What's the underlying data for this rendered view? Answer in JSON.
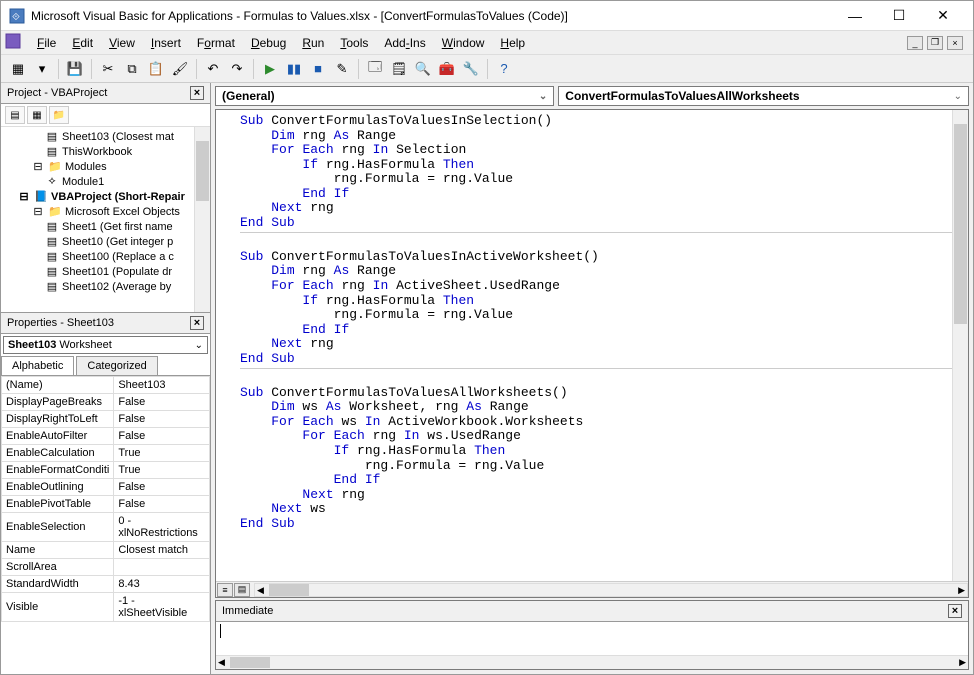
{
  "window": {
    "title": "Microsoft Visual Basic for Applications - Formulas to Values.xlsx - [ConvertFormulasToValues (Code)]"
  },
  "menu": {
    "items": [
      "File",
      "Edit",
      "View",
      "Insert",
      "Format",
      "Debug",
      "Run",
      "Tools",
      "Add-Ins",
      "Window",
      "Help"
    ],
    "underlines": [
      0,
      0,
      0,
      0,
      1,
      0,
      0,
      0,
      3,
      0,
      0
    ]
  },
  "toolbar": {
    "groups": [
      [
        "excel",
        "insert-dd"
      ],
      [
        "save"
      ],
      [
        "cut",
        "copy",
        "paste",
        "format-painter"
      ],
      [
        "undo",
        "redo"
      ],
      [
        "run",
        "break",
        "reset",
        "design-mode"
      ],
      [
        "project-explorer",
        "properties-window",
        "object-browser",
        "toolbox",
        "tools-dd"
      ],
      [
        "help"
      ]
    ],
    "glyphs": {
      "excel": "▦",
      "insert-dd": "▾",
      "save": "💾",
      "cut": "✂",
      "copy": "⧉",
      "paste": "📋",
      "format-painter": "🖌",
      "undo": "↶",
      "redo": "↷",
      "run": "▶",
      "break": "▮▮",
      "reset": "■",
      "design-mode": "✎",
      "project-explorer": "🗔",
      "properties-window": "🗒",
      "object-browser": "🔍",
      "toolbox": "🧰",
      "tools-dd": "🔧",
      "help": "?"
    },
    "colors": {
      "run": "#2e8b2e",
      "break": "#1a5ab0",
      "reset": "#1a5ab0",
      "help": "#1a5ab0"
    }
  },
  "project_explorer": {
    "title": "Project - VBAProject",
    "tree": [
      {
        "indent": 3,
        "icon": "▤",
        "label": "Sheet103 (Closest mat"
      },
      {
        "indent": 3,
        "icon": "▤",
        "label": "ThisWorkbook"
      },
      {
        "indent": 2,
        "icon": "📁",
        "label": "Modules",
        "expander": "⊟"
      },
      {
        "indent": 3,
        "icon": "⟡",
        "label": "Module1"
      },
      {
        "indent": 1,
        "icon": "📘",
        "label": "VBAProject (Short-Repair",
        "bold": true,
        "expander": "⊟"
      },
      {
        "indent": 2,
        "icon": "📁",
        "label": "Microsoft Excel Objects",
        "expander": "⊟"
      },
      {
        "indent": 3,
        "icon": "▤",
        "label": "Sheet1 (Get first name"
      },
      {
        "indent": 3,
        "icon": "▤",
        "label": "Sheet10 (Get integer p"
      },
      {
        "indent": 3,
        "icon": "▤",
        "label": "Sheet100 (Replace a c"
      },
      {
        "indent": 3,
        "icon": "▤",
        "label": "Sheet101 (Populate dr"
      },
      {
        "indent": 3,
        "icon": "▤",
        "label": "Sheet102 (Average by"
      }
    ]
  },
  "properties": {
    "title": "Properties - Sheet103",
    "object_name": "Sheet103",
    "object_type": "Worksheet",
    "tabs": [
      "Alphabetic",
      "Categorized"
    ],
    "rows": [
      [
        "(Name)",
        "Sheet103"
      ],
      [
        "DisplayPageBreaks",
        "False"
      ],
      [
        "DisplayRightToLeft",
        "False"
      ],
      [
        "EnableAutoFilter",
        "False"
      ],
      [
        "EnableCalculation",
        "True"
      ],
      [
        "EnableFormatConditi",
        "True"
      ],
      [
        "EnableOutlining",
        "False"
      ],
      [
        "EnablePivotTable",
        "False"
      ],
      [
        "EnableSelection",
        "0 - xlNoRestrictions"
      ],
      [
        "Name",
        "Closest match"
      ],
      [
        "ScrollArea",
        ""
      ],
      [
        "StandardWidth",
        "8.43"
      ],
      [
        "Visible",
        "-1 - xlSheetVisible"
      ]
    ]
  },
  "code_dropdowns": {
    "left": "(General)",
    "right": "ConvertFormulasToValuesAllWorksheets"
  },
  "code": {
    "keyword_color": "#0000cc",
    "text_color": "#000000",
    "font_family": "Consolas, Courier New, monospace",
    "font_size": 13,
    "subs": [
      {
        "lines": [
          {
            "t": "Sub ConvertFormulasToValuesInSelection()",
            "kw": [
              "Sub"
            ]
          },
          {
            "t": "    Dim rng As Range",
            "kw": [
              "Dim",
              "As"
            ]
          },
          {
            "t": "    For Each rng In Selection",
            "kw": [
              "For",
              "Each",
              "In"
            ]
          },
          {
            "t": "        If rng.HasFormula Then",
            "kw": [
              "If",
              "Then"
            ]
          },
          {
            "t": "            rng.Formula = rng.Value",
            "kw": []
          },
          {
            "t": "        End If",
            "kw": [
              "End",
              "If"
            ]
          },
          {
            "t": "    Next rng",
            "kw": [
              "Next"
            ]
          },
          {
            "t": "End Sub",
            "kw": [
              "End",
              "Sub"
            ]
          }
        ]
      },
      {
        "lines": [
          {
            "t": "Sub ConvertFormulasToValuesInActiveWorksheet()",
            "kw": [
              "Sub"
            ]
          },
          {
            "t": "    Dim rng As Range",
            "kw": [
              "Dim",
              "As"
            ]
          },
          {
            "t": "    For Each rng In ActiveSheet.UsedRange",
            "kw": [
              "For",
              "Each",
              "In"
            ]
          },
          {
            "t": "        If rng.HasFormula Then",
            "kw": [
              "If",
              "Then"
            ]
          },
          {
            "t": "            rng.Formula = rng.Value",
            "kw": []
          },
          {
            "t": "        End If",
            "kw": [
              "End",
              "If"
            ]
          },
          {
            "t": "    Next rng",
            "kw": [
              "Next"
            ]
          },
          {
            "t": "End Sub",
            "kw": [
              "End",
              "Sub"
            ]
          }
        ]
      },
      {
        "lines": [
          {
            "t": "Sub ConvertFormulasToValuesAllWorksheets()",
            "kw": [
              "Sub"
            ]
          },
          {
            "t": "    Dim ws As Worksheet, rng As Range",
            "kw": [
              "Dim",
              "As",
              "As"
            ]
          },
          {
            "t": "    For Each ws In ActiveWorkbook.Worksheets",
            "kw": [
              "For",
              "Each",
              "In"
            ]
          },
          {
            "t": "        For Each rng In ws.UsedRange",
            "kw": [
              "For",
              "Each",
              "In"
            ]
          },
          {
            "t": "            If rng.HasFormula Then",
            "kw": [
              "If",
              "Then"
            ]
          },
          {
            "t": "                rng.Formula = rng.Value",
            "kw": []
          },
          {
            "t": "            End If",
            "kw": [
              "End",
              "If"
            ]
          },
          {
            "t": "        Next rng",
            "kw": [
              "Next"
            ]
          },
          {
            "t": "    Next ws",
            "kw": [
              "Next"
            ]
          },
          {
            "t": "End Sub",
            "kw": [
              "End",
              "Sub"
            ]
          }
        ]
      }
    ]
  },
  "immediate": {
    "title": "Immediate"
  }
}
